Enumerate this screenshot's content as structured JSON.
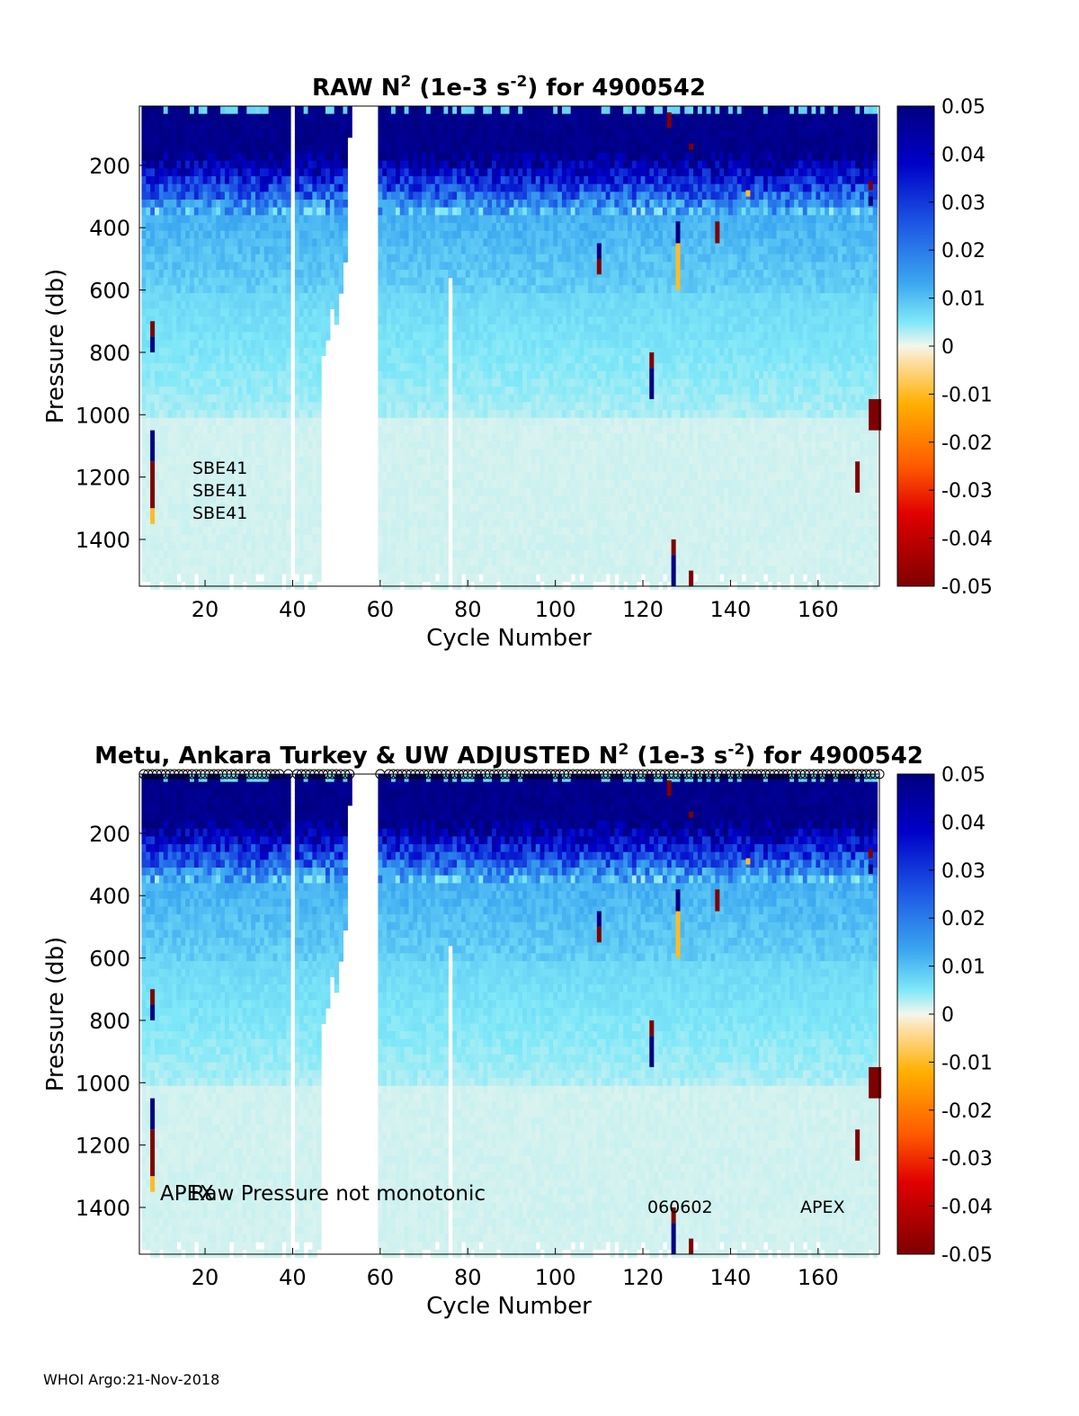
{
  "footer": "WHOI Argo:21-Nov-2018",
  "colorbar": {
    "ticks": [
      "0.05",
      "0.04",
      "0.03",
      "0.02",
      "0.01",
      "0",
      "-0.01",
      "-0.02",
      "-0.03",
      "-0.04",
      "-0.05"
    ],
    "range": [
      -0.05,
      0.05
    ]
  },
  "chart_data": [
    {
      "type": "heatmap",
      "title_main": "RAW N",
      "title_sup": "2",
      "title_mid": " (1e-3 s",
      "title_sup2": "-2",
      "title_end": ") for 4900542",
      "xlabel": "Cycle Number",
      "ylabel": "Pressure (db)",
      "xlim": [
        5,
        174
      ],
      "ylim": [
        1550,
        10
      ],
      "xticks": [
        "20",
        "40",
        "60",
        "80",
        "100",
        "120",
        "140",
        "160"
      ],
      "yticks": [
        "200",
        "400",
        "600",
        "800",
        "1000",
        "1200",
        "1400"
      ],
      "annotations": [
        "SBE41",
        "SBE41",
        "SBE41"
      ],
      "anomalies": [
        {
          "cycle": 8,
          "p0": 700,
          "p1": 750,
          "value": -0.05
        },
        {
          "cycle": 8,
          "p0": 750,
          "p1": 800,
          "value": 0.05
        },
        {
          "cycle": 8,
          "p0": 1050,
          "p1": 1150,
          "value": 0.05
        },
        {
          "cycle": 8,
          "p0": 1150,
          "p1": 1300,
          "value": -0.05
        },
        {
          "cycle": 8,
          "p0": 1300,
          "p1": 1350,
          "value": -0.01
        },
        {
          "cycle": 110,
          "p0": 450,
          "p1": 500,
          "value": 0.05
        },
        {
          "cycle": 110,
          "p0": 500,
          "p1": 550,
          "value": -0.05
        },
        {
          "cycle": 122,
          "p0": 800,
          "p1": 850,
          "value": -0.05
        },
        {
          "cycle": 122,
          "p0": 850,
          "p1": 950,
          "value": 0.05
        },
        {
          "cycle": 128,
          "p0": 380,
          "p1": 450,
          "value": 0.05
        },
        {
          "cycle": 128,
          "p0": 450,
          "p1": 600,
          "value": -0.01
        },
        {
          "cycle": 137,
          "p0": 380,
          "p1": 450,
          "value": -0.05
        },
        {
          "cycle": 127,
          "p0": 1400,
          "p1": 1450,
          "value": -0.05
        },
        {
          "cycle": 127,
          "p0": 1450,
          "p1": 1550,
          "value": 0.05
        },
        {
          "cycle": 131,
          "p0": 1500,
          "p1": 1550,
          "value": -0.05
        },
        {
          "cycle": 126,
          "p0": 30,
          "p1": 80,
          "value": -0.05
        },
        {
          "cycle": 131,
          "p0": 130,
          "p1": 150,
          "value": -0.05
        },
        {
          "cycle": 169,
          "p0": 1150,
          "p1": 1250,
          "value": -0.05
        },
        {
          "cycle": 173,
          "p0": 950,
          "p1": 1050,
          "value": -0.05
        },
        {
          "cycle": 172,
          "p0": 250,
          "p1": 280,
          "value": -0.05
        },
        {
          "cycle": 172,
          "p0": 300,
          "p1": 330,
          "value": 0.05
        },
        {
          "cycle": 144,
          "p0": 280,
          "p1": 300,
          "value": -0.01
        }
      ]
    },
    {
      "type": "heatmap",
      "title_main": "Metu, Ankara Turkey & UW  ADJUSTED N",
      "title_sup": "2",
      "title_mid": " (1e-3 s",
      "title_sup2": "-2",
      "title_end": ") for 4900542",
      "xlabel": "Cycle Number",
      "ylabel": "Pressure (db)",
      "xlim": [
        5,
        174
      ],
      "ylim": [
        1550,
        10
      ],
      "xticks": [
        "20",
        "40",
        "60",
        "80",
        "100",
        "120",
        "140",
        "160"
      ],
      "yticks": [
        "200",
        "400",
        "600",
        "800",
        "1000",
        "1200",
        "1400"
      ],
      "annotations": [
        "APEX",
        "Raw Pressure not monotonic",
        "060602",
        "APEX"
      ],
      "qc_marker": "o",
      "anomalies": [
        {
          "cycle": 8,
          "p0": 700,
          "p1": 750,
          "value": -0.05
        },
        {
          "cycle": 8,
          "p0": 750,
          "p1": 800,
          "value": 0.05
        },
        {
          "cycle": 8,
          "p0": 1050,
          "p1": 1150,
          "value": 0.05
        },
        {
          "cycle": 8,
          "p0": 1150,
          "p1": 1300,
          "value": -0.05
        },
        {
          "cycle": 8,
          "p0": 1300,
          "p1": 1350,
          "value": -0.01
        },
        {
          "cycle": 110,
          "p0": 450,
          "p1": 500,
          "value": 0.05
        },
        {
          "cycle": 110,
          "p0": 500,
          "p1": 550,
          "value": -0.05
        },
        {
          "cycle": 122,
          "p0": 800,
          "p1": 850,
          "value": -0.05
        },
        {
          "cycle": 122,
          "p0": 850,
          "p1": 950,
          "value": 0.05
        },
        {
          "cycle": 128,
          "p0": 380,
          "p1": 450,
          "value": 0.05
        },
        {
          "cycle": 128,
          "p0": 450,
          "p1": 600,
          "value": -0.01
        },
        {
          "cycle": 137,
          "p0": 380,
          "p1": 450,
          "value": -0.05
        },
        {
          "cycle": 127,
          "p0": 1400,
          "p1": 1450,
          "value": -0.05
        },
        {
          "cycle": 127,
          "p0": 1450,
          "p1": 1550,
          "value": 0.05
        },
        {
          "cycle": 131,
          "p0": 1500,
          "p1": 1550,
          "value": -0.05
        },
        {
          "cycle": 126,
          "p0": 30,
          "p1": 80,
          "value": -0.05
        },
        {
          "cycle": 131,
          "p0": 130,
          "p1": 150,
          "value": -0.05
        },
        {
          "cycle": 169,
          "p0": 1150,
          "p1": 1250,
          "value": -0.05
        },
        {
          "cycle": 173,
          "p0": 950,
          "p1": 1050,
          "value": -0.05
        },
        {
          "cycle": 172,
          "p0": 250,
          "p1": 280,
          "value": -0.05
        },
        {
          "cycle": 172,
          "p0": 300,
          "p1": 330,
          "value": 0.05
        },
        {
          "cycle": 144,
          "p0": 280,
          "p1": 300,
          "value": -0.01
        }
      ]
    }
  ]
}
